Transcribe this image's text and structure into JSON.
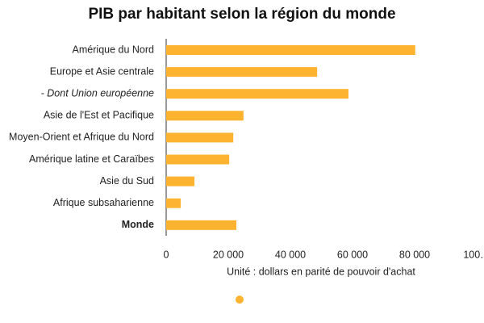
{
  "chart_data": {
    "type": "barh",
    "title": "PIB par habitant selon la région du monde",
    "x_label": "Unité : dollars en parité de pouvoir d'achat",
    "categories": [
      "Amérique du Nord",
      "Europe et Asie centrale",
      "- Dont Union européenne",
      "Asie de l'Est et Pacifique",
      "Moyen-Orient et Afrique du Nord",
      "Amérique latine et Caraïbes",
      "Asie du Sud",
      "Afrique subsaharienne",
      "Monde"
    ],
    "category_styles": [
      "normal",
      "normal",
      "italic",
      "normal",
      "normal",
      "normal",
      "normal",
      "normal",
      "bold"
    ],
    "values": [
      80200,
      48600,
      58700,
      24900,
      21600,
      20300,
      9100,
      4700,
      22600
    ],
    "color": "#fdb32f",
    "xlim": [
      0,
      100000
    ],
    "xticks": [
      0,
      {
        "value": 20000,
        "label": "20 000"
      },
      {
        "value": 40000,
        "label": "40 000"
      },
      {
        "value": 60000,
        "label": "60 000"
      },
      {
        "value": 80000,
        "label": "80 000"
      },
      {
        "value": 100000,
        "label": "100…"
      }
    ]
  }
}
